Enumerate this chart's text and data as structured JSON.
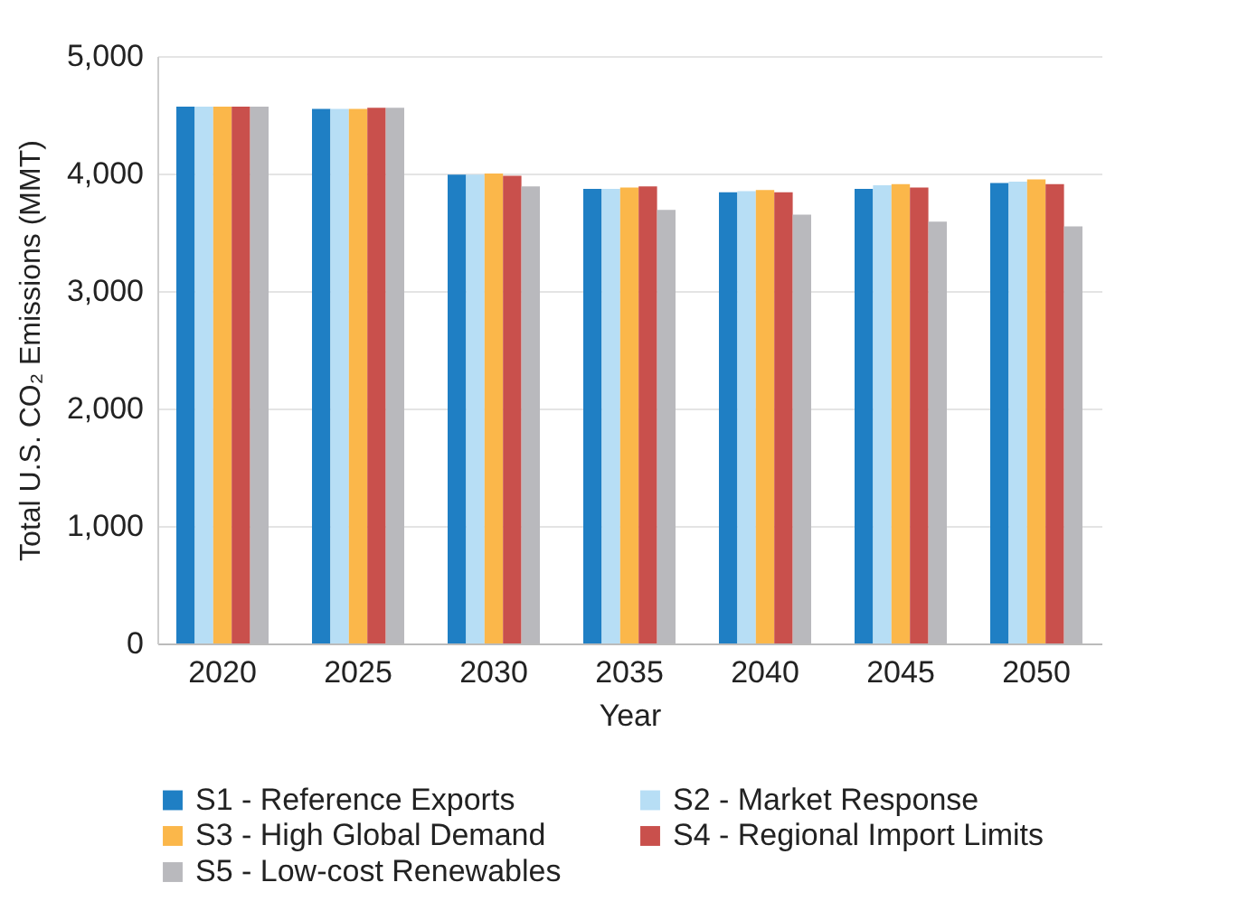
{
  "chart_data": {
    "type": "bar",
    "xlabel": "Year",
    "ylabel": "Total U.S. CO₂ Emissions (MMT)",
    "categories": [
      "2020",
      "2025",
      "2030",
      "2035",
      "2040",
      "2045",
      "2050"
    ],
    "series": [
      {
        "name": "S1 - Reference Exports",
        "color": "#1f7fc4",
        "values": [
          4570,
          4550,
          3990,
          3870,
          3840,
          3870,
          3920
        ]
      },
      {
        "name": "S2 - Market Response",
        "color": "#b7def5",
        "values": [
          4570,
          4550,
          3990,
          3870,
          3850,
          3900,
          3930
        ]
      },
      {
        "name": "S3 - High Global Demand",
        "color": "#fbb74a",
        "values": [
          4570,
          4550,
          4000,
          3880,
          3860,
          3910,
          3950
        ]
      },
      {
        "name": "S4 - Regional Import Limits",
        "color": "#c9504c",
        "values": [
          4570,
          4560,
          3980,
          3890,
          3840,
          3880,
          3910
        ]
      },
      {
        "name": "S5 - Low-cost Renewables",
        "color": "#b9b9bd",
        "values": [
          4570,
          4560,
          3890,
          3690,
          3650,
          3590,
          3550
        ]
      }
    ],
    "ylim": [
      0,
      5000
    ],
    "yticks": [
      0,
      {
        "value": 1000,
        "label": "1,000"
      },
      {
        "value": 2000,
        "label": "2,000"
      },
      {
        "value": 3000,
        "label": "3,000"
      },
      {
        "value": 4000,
        "label": "4,000"
      },
      {
        "value": 5000,
        "label": "5,000"
      }
    ],
    "grid": "y",
    "legend": "bottom"
  }
}
